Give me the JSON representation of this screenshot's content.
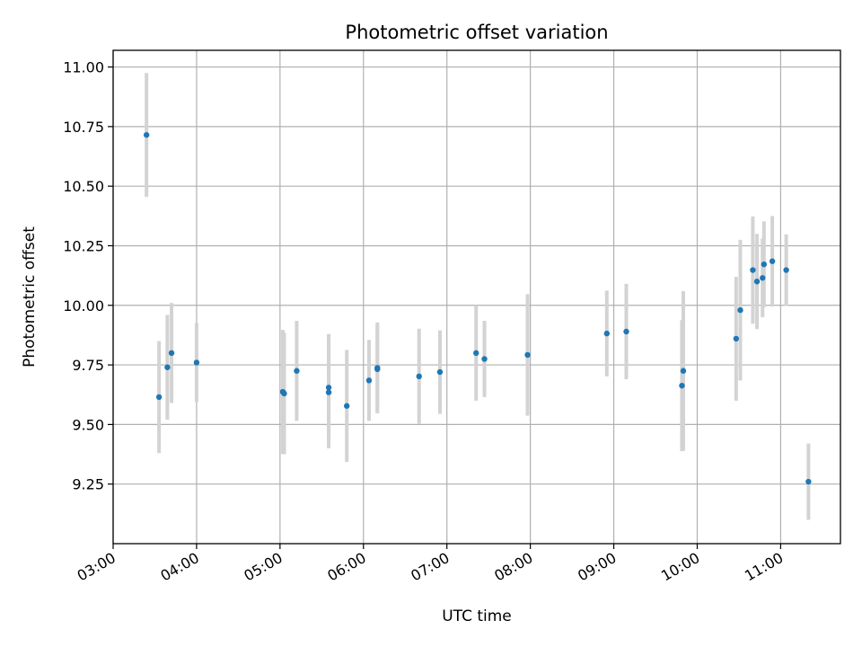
{
  "chart_data": {
    "type": "scatter",
    "title": "Photometric offset variation",
    "xlabel": "UTC time",
    "ylabel": "Photometric offset",
    "x_axis": {
      "kind": "time",
      "range": [
        "03:00",
        "11:43"
      ],
      "ticks": [
        "03:00",
        "04:00",
        "05:00",
        "06:00",
        "07:00",
        "08:00",
        "09:00",
        "10:00",
        "11:00"
      ]
    },
    "y_axis": {
      "range": [
        9.0,
        11.07
      ],
      "ticks": [
        9.25,
        9.5,
        9.75,
        10.0,
        10.25,
        10.5,
        10.75,
        11.0
      ],
      "tick_labels": [
        "9.25",
        "9.50",
        "9.75",
        "10.00",
        "10.25",
        "10.50",
        "10.75",
        "11.00"
      ]
    },
    "grid": true,
    "colors": {
      "point": "#1f77b4",
      "errorbar": "#d3d3d3",
      "grid": "#b0b0b0"
    },
    "points": [
      {
        "time": "03:24",
        "y": 10.715,
        "err": 0.26
      },
      {
        "time": "03:33",
        "y": 9.615,
        "err": 0.235
      },
      {
        "time": "03:39",
        "y": 9.74,
        "err": 0.22
      },
      {
        "time": "03:42",
        "y": 9.8,
        "err": 0.21
      },
      {
        "time": "04:00",
        "y": 9.76,
        "err": 0.165
      },
      {
        "time": "05:02",
        "y": 9.637,
        "err": 0.26
      },
      {
        "time": "05:03",
        "y": 9.63,
        "err": 0.255
      },
      {
        "time": "05:12",
        "y": 9.725,
        "err": 0.21
      },
      {
        "time": "05:35",
        "y": 9.655,
        "err": 0.225
      },
      {
        "time": "05:35",
        "y": 9.635,
        "err": 0.235
      },
      {
        "time": "05:48",
        "y": 9.578,
        "err": 0.235
      },
      {
        "time": "06:04",
        "y": 9.685,
        "err": 0.17
      },
      {
        "time": "06:10",
        "y": 9.738,
        "err": 0.19
      },
      {
        "time": "06:10",
        "y": 9.732,
        "err": 0.185
      },
      {
        "time": "06:40",
        "y": 9.702,
        "err": 0.2
      },
      {
        "time": "06:55",
        "y": 9.72,
        "err": 0.175
      },
      {
        "time": "07:21",
        "y": 9.8,
        "err": 0.2
      },
      {
        "time": "07:27",
        "y": 9.775,
        "err": 0.16
      },
      {
        "time": "07:58",
        "y": 9.792,
        "err": 0.255
      },
      {
        "time": "08:55",
        "y": 9.882,
        "err": 0.18
      },
      {
        "time": "09:09",
        "y": 9.89,
        "err": 0.2
      },
      {
        "time": "09:49",
        "y": 9.663,
        "err": 0.275
      },
      {
        "time": "09:50",
        "y": 9.725,
        "err": 0.335
      },
      {
        "time": "10:28",
        "y": 9.86,
        "err": 0.26
      },
      {
        "time": "10:31",
        "y": 9.98,
        "err": 0.295
      },
      {
        "time": "10:40",
        "y": 10.148,
        "err": 0.225
      },
      {
        "time": "10:43",
        "y": 10.1,
        "err": 0.2
      },
      {
        "time": "10:47",
        "y": 10.115,
        "err": 0.165
      },
      {
        "time": "10:48",
        "y": 10.172,
        "err": 0.18
      },
      {
        "time": "10:54",
        "y": 10.185,
        "err": 0.19
      },
      {
        "time": "11:04",
        "y": 10.148,
        "err": 0.15
      },
      {
        "time": "11:20",
        "y": 9.26,
        "err": 0.16
      }
    ]
  }
}
